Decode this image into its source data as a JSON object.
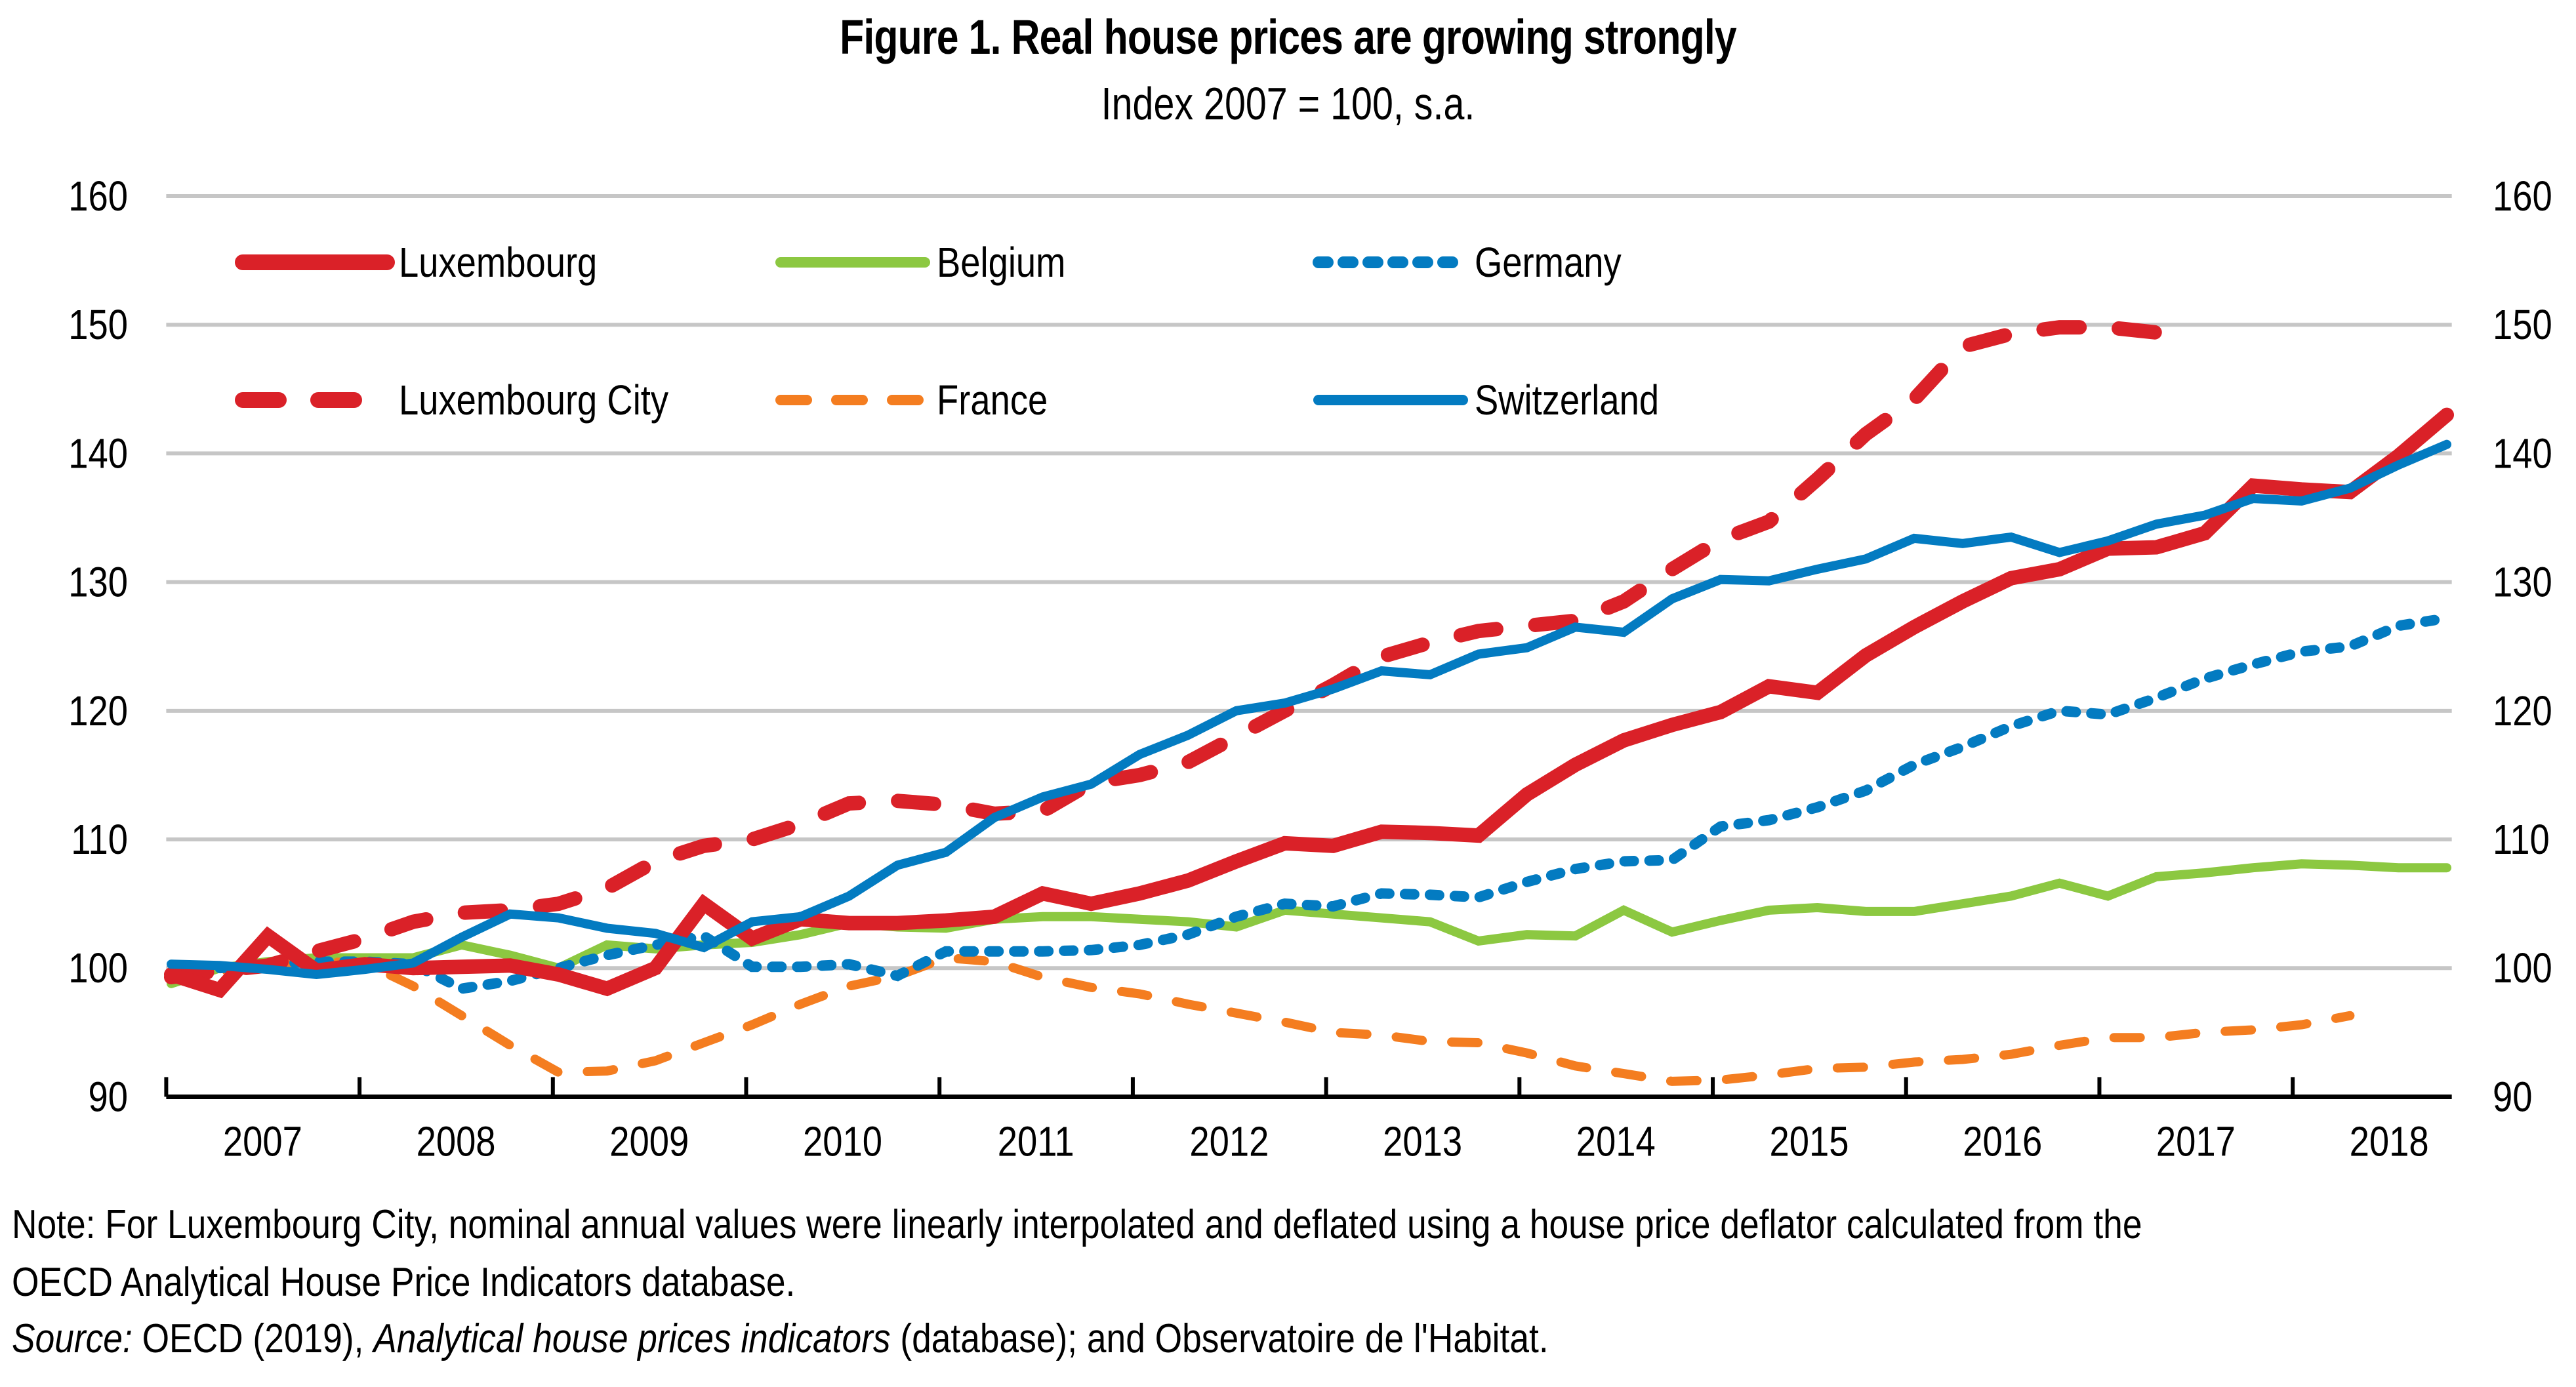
{
  "chart_data": {
    "type": "line",
    "title": "Figure 1. Real house prices are growing strongly",
    "subtitle": "Index 2007 = 100, s.a.",
    "xlabel": "",
    "ylabel": "",
    "ylim": [
      90,
      160
    ],
    "yticks": [
      90,
      100,
      110,
      120,
      130,
      140,
      150,
      160
    ],
    "ytick_labels": [
      "90",
      "100",
      "110",
      "120",
      "130",
      "140",
      "150",
      "160"
    ],
    "secondary_yticks": [
      "90",
      "100",
      "110",
      "120",
      "130",
      "140",
      "150",
      "160"
    ],
    "categories": [
      "2007",
      "2008",
      "2009",
      "2010",
      "2011",
      "2012",
      "2013",
      "2014",
      "2015",
      "2016",
      "2017",
      "2018"
    ],
    "frequency": "quarterly",
    "x_start": "2007Q1",
    "grid": true,
    "legend_position": "top-left, 3 columns x 2 rows",
    "series": [
      {
        "name": "Luxembourg",
        "color": "#DA2128",
        "style": "solid-thick",
        "values": [
          99.5,
          98.3,
          102.5,
          99.8,
          100.3,
          100.0,
          100.1,
          100.2,
          99.5,
          98.4,
          100.0,
          105.0,
          102.3,
          103.8,
          103.5,
          103.5,
          103.7,
          104.0,
          105.8,
          105.0,
          105.8,
          106.8,
          108.3,
          109.7,
          109.5,
          110.6,
          110.5,
          110.3,
          113.5,
          115.8,
          117.7,
          118.9,
          119.9,
          121.9,
          121.4,
          124.3,
          126.5,
          128.5,
          130.3,
          131.0,
          132.6,
          132.7,
          133.8,
          137.5,
          137.2,
          137.0,
          139.8,
          143.0
        ]
      },
      {
        "name": "Belgium",
        "color": "#8CC841",
        "style": "solid",
        "values": [
          98.8,
          100.0,
          100.5,
          100.8,
          100.8,
          100.8,
          101.8,
          101.0,
          100.0,
          101.8,
          101.5,
          101.8,
          102.0,
          102.6,
          103.5,
          103.2,
          103.1,
          103.8,
          104.0,
          104.0,
          103.8,
          103.6,
          103.2,
          104.5,
          104.2,
          103.9,
          103.6,
          102.1,
          102.6,
          102.5,
          104.5,
          102.8,
          103.7,
          104.5,
          104.7,
          104.4,
          104.4,
          105.0,
          105.6,
          106.6,
          105.6,
          107.1,
          107.4,
          107.8,
          108.1,
          108.0,
          107.8,
          107.8
        ]
      },
      {
        "name": "Germany",
        "color": "#037BC1",
        "style": "dotted",
        "values": [
          99.2,
          100.0,
          100.3,
          100.5,
          100.5,
          100.3,
          98.4,
          99.0,
          100.0,
          101.0,
          101.8,
          102.5,
          100.1,
          100.1,
          100.3,
          99.4,
          101.3,
          101.3,
          101.3,
          101.4,
          101.8,
          102.6,
          104.0,
          105.0,
          104.8,
          105.8,
          105.7,
          105.5,
          106.7,
          107.7,
          108.3,
          108.4,
          111.0,
          111.5,
          112.5,
          113.8,
          115.8,
          117.2,
          118.8,
          120.0,
          119.7,
          121.0,
          122.5,
          123.6,
          124.6,
          125.0,
          126.6,
          127.2
        ]
      },
      {
        "name": "Luxembourg City",
        "color": "#DA2128",
        "style": "dashed-thick",
        "values": [
          99.3,
          99.8,
          100.2,
          101.3,
          102.3,
          103.6,
          104.3,
          104.5,
          105.0,
          106.2,
          108.3,
          109.5,
          110.0,
          111.2,
          112.8,
          113.0,
          112.7,
          112.0,
          112.2,
          114.4,
          115.0,
          116.0,
          118.0,
          120.0,
          122.0,
          124.2,
          125.3,
          126.2,
          126.6,
          127.0,
          128.5,
          131.0,
          133.3,
          134.7,
          138.0,
          141.5,
          144.2,
          148.3,
          149.3,
          149.8,
          149.8,
          149.4
        ]
      },
      {
        "name": "France",
        "color": "#F47D20",
        "style": "dashed",
        "values": [
          99.3,
          99.7,
          100.3,
          100.5,
          100.4,
          98.6,
          96.3,
          94.0,
          91.9,
          92.0,
          92.8,
          94.2,
          95.6,
          97.2,
          98.6,
          99.4,
          100.8,
          100.5,
          99.3,
          98.5,
          98.0,
          97.2,
          96.5,
          95.8,
          95.0,
          94.8,
          94.3,
          94.2,
          93.4,
          92.4,
          91.8,
          91.2,
          91.3,
          91.7,
          92.2,
          92.3,
          92.7,
          92.9,
          93.3,
          94.0,
          94.6,
          94.6,
          95.0,
          95.2,
          95.6,
          96.3
        ]
      },
      {
        "name": "Switzerland",
        "color": "#037BC1",
        "style": "solid",
        "values": [
          100.3,
          100.2,
          99.9,
          99.5,
          99.9,
          100.4,
          102.4,
          104.2,
          103.9,
          103.1,
          102.7,
          101.6,
          103.6,
          104.0,
          105.6,
          108.0,
          109.0,
          111.7,
          113.3,
          114.3,
          116.6,
          118.1,
          120.0,
          120.6,
          121.7,
          123.1,
          122.8,
          124.4,
          124.9,
          126.5,
          126.1,
          128.7,
          130.2,
          130.1,
          131.0,
          131.8,
          133.4,
          133.0,
          133.5,
          132.3,
          133.2,
          134.5,
          135.2,
          136.5,
          136.3,
          137.3,
          139.1,
          140.7
        ]
      }
    ]
  },
  "notes": {
    "note": "Note: For Luxembourg City, nominal annual values were linearly interpolated and deflated using a house price deflator calculated from the",
    "note_line2": "OECD Analytical House Price Indicators database.",
    "source_label": "Source:",
    "source_text1": " OECD (2019), ",
    "source_italic": "Analytical house prices indicators",
    "source_text2": " (database); and Observatoire de l'Habitat."
  }
}
